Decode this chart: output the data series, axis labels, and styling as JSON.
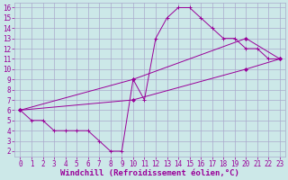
{
  "xlabel": "Windchill (Refroidissement éolien,°C)",
  "background_color": "#cce8e8",
  "grid_color": "#aaaacc",
  "line_color": "#990099",
  "xlim": [
    -0.5,
    23.5
  ],
  "ylim": [
    1.5,
    16.5
  ],
  "xticks": [
    0,
    1,
    2,
    3,
    4,
    5,
    6,
    7,
    8,
    9,
    10,
    11,
    12,
    13,
    14,
    15,
    16,
    17,
    18,
    19,
    20,
    21,
    22,
    23
  ],
  "yticks": [
    2,
    3,
    4,
    5,
    6,
    7,
    8,
    9,
    10,
    11,
    12,
    13,
    14,
    15,
    16
  ],
  "line1_x": [
    0,
    1,
    2,
    3,
    4,
    5,
    6,
    7,
    8,
    9,
    10,
    11,
    12,
    13,
    14,
    15,
    16,
    17,
    18,
    19,
    20,
    21,
    22,
    23
  ],
  "line1_y": [
    6,
    5,
    5,
    4,
    4,
    4,
    4,
    3,
    2,
    2,
    9,
    7,
    13,
    15,
    16,
    16,
    15,
    14,
    13,
    13,
    12,
    12,
    11,
    11
  ],
  "line2_x": [
    0,
    10,
    20,
    23
  ],
  "line2_y": [
    6,
    9,
    13,
    11
  ],
  "line3_x": [
    0,
    10,
    20,
    23
  ],
  "line3_y": [
    6,
    7,
    10,
    11
  ],
  "marker_size": 2.5,
  "font_size_axis": 6.5,
  "font_size_tick": 5.5
}
